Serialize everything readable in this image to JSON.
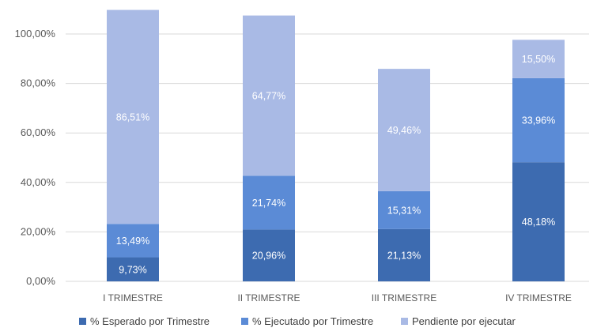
{
  "chart_data": {
    "type": "bar",
    "stacked": true,
    "categories": [
      "I TRIMESTRE",
      "II TRIMESTRE",
      "III TRIMESTRE",
      "IV TRIMESTRE"
    ],
    "series": [
      {
        "name": "% Esperado por Trimestre",
        "color": "#3d6bb0",
        "values": [
          9.73,
          20.96,
          21.13,
          48.18
        ],
        "labels": [
          "9,73%",
          "20,96%",
          "21,13%",
          "48,18%"
        ]
      },
      {
        "name": "% Ejecutado por Trimestre",
        "color": "#5b8bd6",
        "values": [
          13.49,
          21.74,
          15.31,
          33.96
        ],
        "labels": [
          "13,49%",
          "21,74%",
          "15,31%",
          "33,96%"
        ]
      },
      {
        "name": "Pendiente por ejecutar",
        "color": "#a9bae5",
        "values": [
          86.51,
          64.77,
          49.46,
          15.5
        ],
        "labels": [
          "86,51%",
          "64,77%",
          "49,46%",
          "15,50%"
        ]
      }
    ],
    "ylim": [
      0,
      100
    ],
    "yticks": [
      0,
      20,
      40,
      60,
      80,
      100
    ],
    "ytick_labels": [
      "0,00%",
      "20,00%",
      "40,00%",
      "60,00%",
      "80,00%",
      "100,00%"
    ],
    "grid": true,
    "legend_position": "bottom"
  }
}
